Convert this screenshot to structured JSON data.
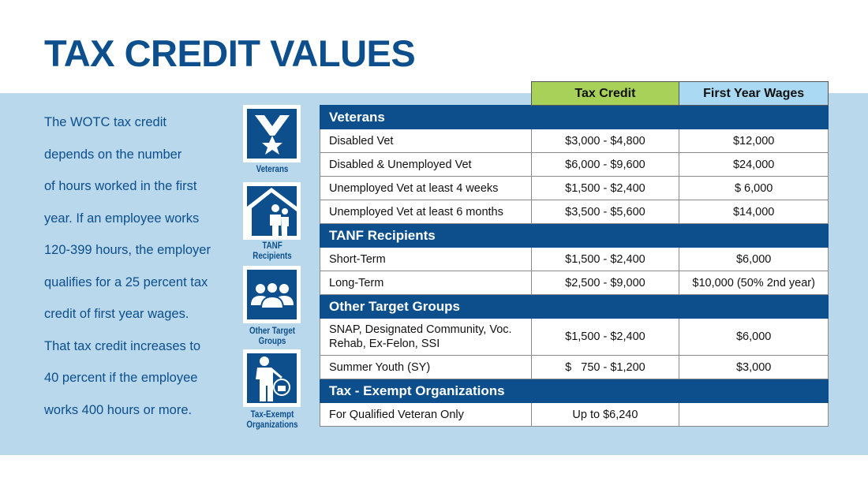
{
  "title": "TAX CREDIT VALUES",
  "intro_lines": [
    "The WOTC tax credit",
    "depends on the number",
    "of hours worked in the first",
    "year. If an employee works",
    "120-399 hours, the employer",
    "qualifies for a 25 percent tax",
    "credit of first year wages.",
    "That tax credit increases to",
    "40 percent if the employee",
    "works 400  hours or more."
  ],
  "icons": [
    {
      "name": "veterans-medal-icon",
      "label": "Veterans"
    },
    {
      "name": "tanf-family-house-icon",
      "label": "TANF Recipients"
    },
    {
      "name": "group-people-icon",
      "label": "Other Target Groups"
    },
    {
      "name": "organization-person-icon",
      "label": "Tax-Exempt Organizations"
    }
  ],
  "colors": {
    "navy": "#0c4f8c",
    "band": "#b9d8eb",
    "tax_credit_header": "#a8d15a",
    "wages_header": "#a9d9f3"
  },
  "table": {
    "headers": [
      "Tax Credit",
      "First Year Wages"
    ],
    "sections": [
      {
        "title": "Veterans",
        "rows": [
          [
            "Disabled Vet",
            "$3,000 - $4,800",
            "$12,000"
          ],
          [
            "Disabled & Unemployed Vet",
            "$6,000 - $9,600",
            "$24,000"
          ],
          [
            "Unemployed Vet at least 4 weeks",
            "$1,500 - $2,400",
            "$ 6,000"
          ],
          [
            "Unemployed Vet at least 6 months",
            "$3,500 - $5,600",
            "$14,000"
          ]
        ]
      },
      {
        "title": "TANF Recipients",
        "rows": [
          [
            "Short-Term",
            "$1,500 - $2,400",
            "$6,000"
          ],
          [
            "Long-Term",
            "$2,500 - $9,000",
            "$10,000 (50% 2nd year)"
          ]
        ]
      },
      {
        "title": "Other Target Groups",
        "rows": [
          [
            "SNAP, Designated Community, Voc. Rehab, Ex-Felon, SSI",
            "$1,500 - $2,400",
            "$6,000"
          ],
          [
            "Summer Youth (SY)",
            "$   750 - $1,200",
            "$3,000"
          ]
        ]
      },
      {
        "title": "Tax - Exempt Organizations",
        "rows": [
          [
            "For Qualified Veteran Only",
            "Up to $6,240",
            ""
          ]
        ]
      }
    ]
  }
}
